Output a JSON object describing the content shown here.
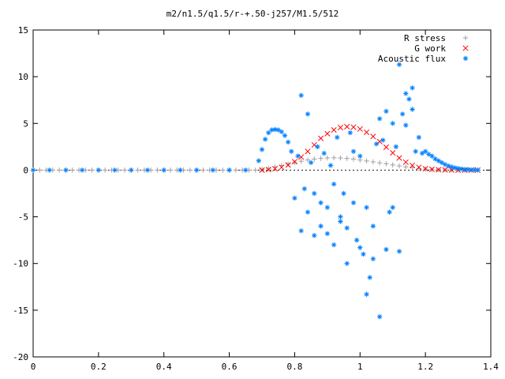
{
  "chart_data": {
    "type": "scatter",
    "title": "m2/n1.5/q1.5/r-+.50-j257/M1.5/512",
    "xlabel": "",
    "ylabel": "",
    "xlim": [
      0,
      1.4
    ],
    "ylim": [
      -20,
      15
    ],
    "x_ticks": [
      0,
      0.2,
      0.4,
      0.6,
      0.8,
      1,
      1.2,
      1.4
    ],
    "x_tick_labels": [
      "0",
      "0.2",
      "0.4",
      "0.6",
      "0.8",
      "1",
      "1.2",
      "1.4"
    ],
    "y_ticks": [
      -20,
      -15,
      -10,
      -5,
      0,
      5,
      10,
      15
    ],
    "y_tick_labels": [
      "-20",
      "-15",
      "-10",
      "-5",
      "0",
      "5",
      "10",
      "15"
    ],
    "grid": false,
    "legend_position": "top-right",
    "series": [
      {
        "name": "R stress",
        "color": "#a0a0a0",
        "marker": "plus",
        "x": [
          0.0,
          0.02,
          0.04,
          0.06,
          0.08,
          0.1,
          0.12,
          0.14,
          0.16,
          0.18,
          0.2,
          0.22,
          0.24,
          0.26,
          0.28,
          0.3,
          0.32,
          0.34,
          0.36,
          0.38,
          0.4,
          0.42,
          0.44,
          0.46,
          0.48,
          0.5,
          0.52,
          0.54,
          0.56,
          0.58,
          0.6,
          0.62,
          0.64,
          0.66,
          0.68,
          0.7,
          0.72,
          0.74,
          0.76,
          0.78,
          0.8,
          0.82,
          0.84,
          0.86,
          0.88,
          0.9,
          0.92,
          0.94,
          0.96,
          0.98,
          1.0,
          1.02,
          1.04,
          1.06,
          1.08,
          1.1,
          1.12,
          1.14,
          1.16,
          1.18,
          1.2,
          1.22,
          1.24,
          1.26,
          1.28,
          1.3,
          1.32,
          1.34,
          1.36
        ],
        "y": [
          0,
          0,
          0,
          0,
          0,
          0,
          0,
          0,
          0,
          0,
          0,
          0,
          0,
          0,
          0,
          0,
          0,
          0,
          0,
          0,
          0,
          0,
          0,
          0,
          0,
          0,
          0,
          0,
          0,
          0,
          0,
          0,
          0,
          0,
          0,
          0.1,
          0.2,
          0.35,
          0.5,
          0.65,
          0.8,
          0.95,
          1.08,
          1.18,
          1.25,
          1.3,
          1.32,
          1.3,
          1.25,
          1.18,
          1.08,
          0.98,
          0.88,
          0.78,
          0.68,
          0.56,
          0.45,
          0.34,
          0.25,
          0.17,
          0.11,
          0.07,
          0.04,
          0.02,
          0.01,
          0.0,
          0.0,
          0.0,
          0.0
        ]
      },
      {
        "name": "G work",
        "color": "#ff0000",
        "marker": "cross",
        "x": [
          0.7,
          0.72,
          0.74,
          0.76,
          0.78,
          0.8,
          0.82,
          0.84,
          0.86,
          0.88,
          0.9,
          0.92,
          0.94,
          0.96,
          0.98,
          1.0,
          1.02,
          1.04,
          1.06,
          1.08,
          1.1,
          1.12,
          1.14,
          1.16,
          1.18,
          1.2,
          1.22,
          1.24,
          1.26,
          1.28,
          1.3,
          1.32,
          1.34,
          1.36
        ],
        "y": [
          0.0,
          0.05,
          0.15,
          0.3,
          0.55,
          0.9,
          1.4,
          2.0,
          2.7,
          3.4,
          3.9,
          4.3,
          4.55,
          4.65,
          4.6,
          4.4,
          4.05,
          3.6,
          3.05,
          2.45,
          1.85,
          1.3,
          0.85,
          0.5,
          0.3,
          0.15,
          0.08,
          0.04,
          0.02,
          0.01,
          0.0,
          0.0,
          0.0,
          0.0
        ]
      },
      {
        "name": "Acoustic flux",
        "color": "#0080ff",
        "marker": "asterisk",
        "x": [
          0.0,
          0.05,
          0.1,
          0.15,
          0.2,
          0.25,
          0.3,
          0.35,
          0.4,
          0.45,
          0.5,
          0.55,
          0.6,
          0.65,
          0.69,
          0.7,
          0.71,
          0.72,
          0.73,
          0.74,
          0.75,
          0.76,
          0.77,
          0.78,
          0.79,
          0.8,
          0.81,
          0.82,
          0.83,
          0.84,
          0.85,
          0.86,
          0.87,
          0.88,
          0.89,
          0.9,
          0.91,
          0.92,
          0.93,
          0.94,
          0.95,
          0.96,
          0.97,
          0.98,
          0.99,
          1.0,
          1.01,
          1.02,
          1.03,
          1.04,
          1.05,
          1.06,
          1.07,
          1.08,
          1.09,
          1.1,
          1.11,
          1.12,
          1.13,
          1.14,
          1.15,
          1.16,
          1.17,
          1.18,
          1.19,
          1.2,
          1.21,
          1.22,
          1.23,
          1.24,
          1.25,
          1.26,
          1.27,
          1.28,
          1.29,
          1.3,
          1.31,
          1.32,
          1.33,
          1.34,
          1.35,
          1.36,
          0.82,
          0.84,
          0.86,
          0.88,
          0.9,
          0.92,
          0.94,
          0.96,
          0.98,
          1.0,
          1.02,
          1.04,
          1.06,
          1.08,
          1.1,
          1.12,
          1.14,
          1.16
        ],
        "y": [
          0,
          0,
          0,
          0,
          0,
          0,
          0,
          0,
          0,
          0,
          0,
          0,
          0,
          0,
          1.0,
          2.2,
          3.3,
          4.0,
          4.3,
          4.35,
          4.3,
          4.1,
          3.7,
          3.0,
          2.0,
          -3.0,
          1.5,
          -6.5,
          -2.0,
          -4.5,
          0.8,
          -7.0,
          2.5,
          -6.0,
          1.8,
          -4.0,
          0.5,
          -8.0,
          3.5,
          -5.5,
          -2.5,
          -10.0,
          4.0,
          -3.5,
          -7.5,
          1.5,
          -9.0,
          -13.3,
          -11.5,
          -6.0,
          2.8,
          -15.7,
          3.2,
          -8.5,
          -4.5,
          5.0,
          2.5,
          11.3,
          6.0,
          8.2,
          7.6,
          8.8,
          2.0,
          3.5,
          1.8,
          2.0,
          1.7,
          1.5,
          1.2,
          1.0,
          0.8,
          0.6,
          0.45,
          0.35,
          0.25,
          0.18,
          0.12,
          0.08,
          0.05,
          0.03,
          0.02,
          0.01,
          8.0,
          6.0,
          -2.5,
          -3.5,
          -6.8,
          -1.5,
          -5.0,
          -6.2,
          2.0,
          -8.3,
          -4.0,
          -9.5,
          5.5,
          6.3,
          -4.0,
          -8.7,
          4.8,
          6.5
        ]
      }
    ]
  }
}
